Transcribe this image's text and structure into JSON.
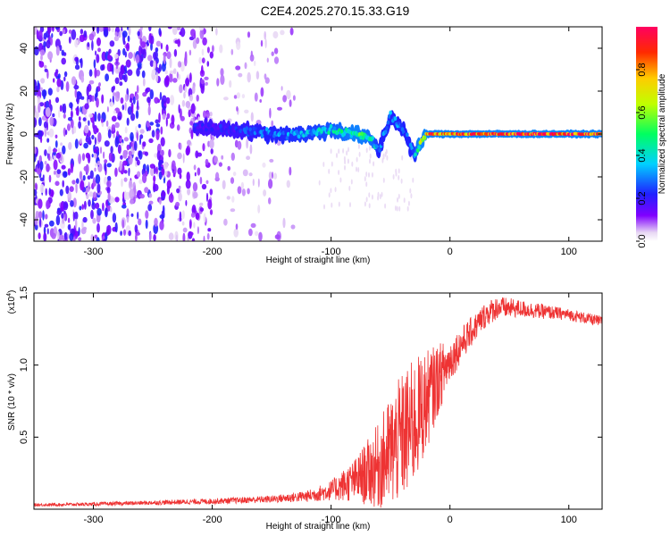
{
  "title": "C2E4.2025.270.15.33.G19",
  "chart_data": [
    {
      "type": "heatmap",
      "name": "spectrogram",
      "xlabel": "Height of straight line (km)",
      "ylabel": "Frequency (Hz)",
      "xlim": [
        -350,
        128
      ],
      "ylim": [
        -50,
        50
      ],
      "xticks": [
        "-300",
        "-200",
        "-100",
        "0",
        "100"
      ],
      "xtick_values": [
        -300,
        -200,
        -100,
        0,
        100
      ],
      "yticks": [
        "-40",
        "-20",
        "0",
        "20",
        "40"
      ],
      "ytick_values": [
        -40,
        -20,
        0,
        20,
        40
      ],
      "ridge": {
        "x": [
          -210,
          -180,
          -150,
          -120,
          -100,
          -80,
          -65,
          -60,
          -50,
          -40,
          -30,
          -20,
          0,
          50,
          100,
          128
        ],
        "freq": [
          3,
          2,
          0,
          0,
          2,
          0,
          -3,
          -8,
          8,
          3,
          -10,
          0,
          0,
          0,
          0,
          0
        ],
        "amplitude": [
          0.2,
          0.22,
          0.3,
          0.35,
          0.4,
          0.5,
          0.45,
          0.3,
          0.3,
          0.3,
          0.3,
          0.85,
          0.9,
          0.95,
          0.95,
          0.9
        ]
      },
      "colorbar": {
        "label": "Normalized spectral amplitude",
        "ticks": [
          "0.0",
          "0.2",
          "0.4",
          "0.6",
          "0.8"
        ],
        "tick_values": [
          0.0,
          0.2,
          0.4,
          0.6,
          0.8
        ],
        "range": [
          0,
          1
        ]
      }
    },
    {
      "type": "line",
      "name": "snr",
      "color": "#ee3333",
      "xlabel": "Height of straight line (km)",
      "ylabel": "SNR (10 * v/v)",
      "scale_label": "(x10",
      "scale_exp": "4",
      "xlim": [
        -350,
        128
      ],
      "ylim": [
        0,
        15000
      ],
      "xticks": [
        "-300",
        "-200",
        "-100",
        "0",
        "100"
      ],
      "xtick_values": [
        -300,
        -200,
        -100,
        0,
        100
      ],
      "yticks": [
        "0.5",
        "1.0",
        "1.5"
      ],
      "ytick_values": [
        5000,
        10000,
        15000
      ],
      "x": [
        -350,
        -300,
        -250,
        -200,
        -150,
        -120,
        -100,
        -80,
        -60,
        -50,
        -40,
        -30,
        -20,
        -10,
        0,
        10,
        20,
        30,
        40,
        60,
        80,
        100,
        128
      ],
      "y": [
        300,
        350,
        450,
        550,
        700,
        900,
        1300,
        2000,
        3000,
        4000,
        5000,
        6000,
        7500,
        9000,
        10300,
        11500,
        12500,
        13500,
        14000,
        13900,
        13700,
        13500,
        13000
      ],
      "spread": [
        100,
        120,
        150,
        200,
        250,
        400,
        700,
        1500,
        3000,
        4000,
        4500,
        4500,
        3500,
        2500,
        1500,
        1200,
        1000,
        900,
        800,
        600,
        500,
        400,
        400
      ]
    }
  ]
}
